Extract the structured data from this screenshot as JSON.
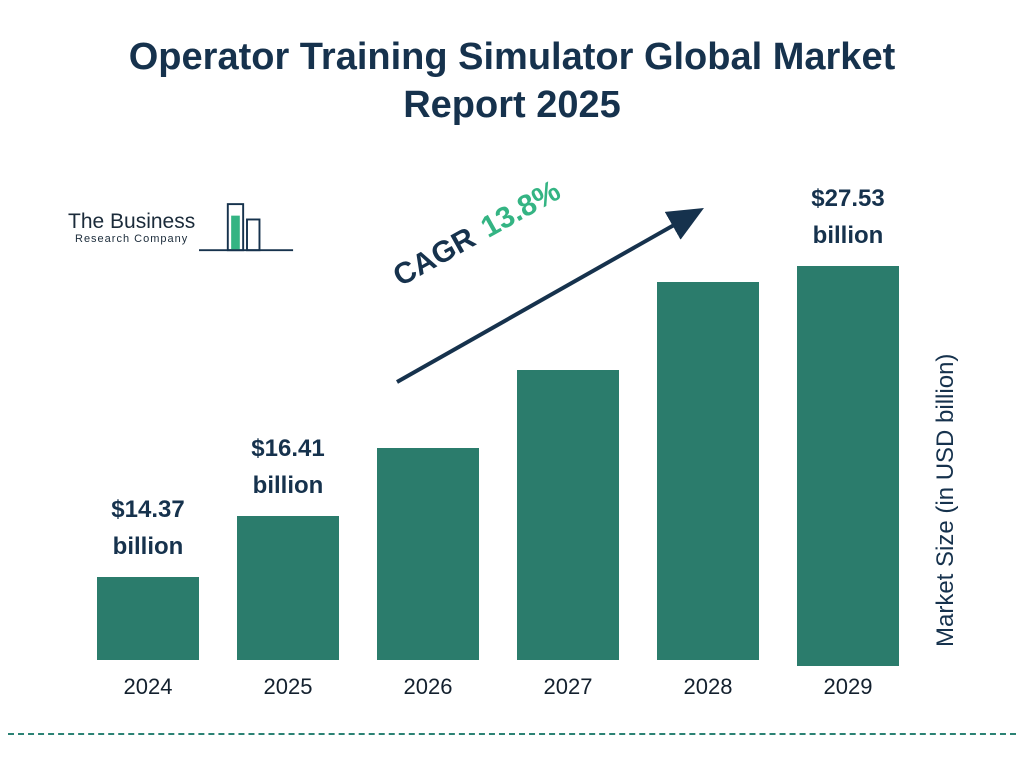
{
  "title": "Operator Training Simulator Global Market Report 2025",
  "logo": {
    "line1": "The Business",
    "line2": "Research Company"
  },
  "cagr": {
    "prefix": "CAGR",
    "value": "13.8%"
  },
  "y_axis_label": "Market Size (in USD billion)",
  "colors": {
    "bar": "#2b7c6c",
    "title": "#16324d",
    "accent_green": "#34b483",
    "dashed_line": "#2b8274"
  },
  "chart_data": {
    "type": "bar",
    "title": "Operator Training Simulator Global Market Report 2025",
    "categories": [
      "2024",
      "2025",
      "2026",
      "2027",
      "2028",
      "2029"
    ],
    "values": [
      14.37,
      16.41,
      18.67,
      21.25,
      24.19,
      27.53
    ],
    "labels": [
      "$14.37\nbillion",
      "$16.41\nbillion",
      null,
      null,
      null,
      "$27.53\nbillion"
    ],
    "ylabel": "Market Size (in USD billion)",
    "annotation": "CAGR 13.8%",
    "legend": false,
    "grid": false,
    "bar_color": "#2b7c6c"
  }
}
